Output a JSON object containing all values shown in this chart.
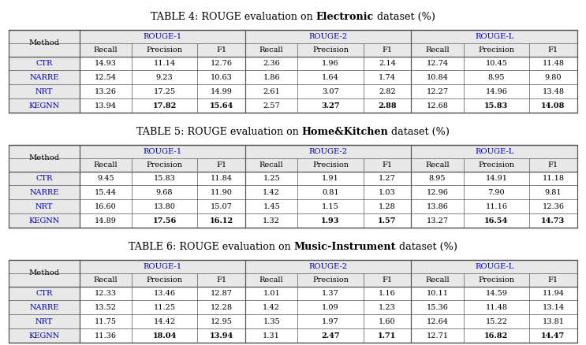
{
  "tables": [
    {
      "title_prefix": "TABLE 4: ROUGE evaluation on ",
      "title_bold": "Electronic",
      "title_suffix": " dataset (%)",
      "rows": [
        [
          "CTR",
          "14.93",
          "11.14",
          "12.76",
          "2.36",
          "1.96",
          "2.14",
          "12.74",
          "10.45",
          "11.48"
        ],
        [
          "NARRE",
          "12.54",
          "9.23",
          "10.63",
          "1.86",
          "1.64",
          "1.74",
          "10.84",
          "8.95",
          "9.80"
        ],
        [
          "NRT",
          "13.26",
          "17.25",
          "14.99",
          "2.61",
          "3.07",
          "2.82",
          "12.27",
          "14.96",
          "13.48"
        ],
        [
          "KEGNN",
          "13.94",
          "17.82",
          "15.64",
          "2.57",
          "3.27",
          "2.88",
          "12.68",
          "15.83",
          "14.08"
        ]
      ],
      "bold_row": 3,
      "bold_cols": [
        2,
        3,
        5,
        6,
        8,
        9
      ]
    },
    {
      "title_prefix": "TABLE 5: ROUGE evaluation on ",
      "title_bold": "Home&Kitchen",
      "title_suffix": " dataset (%)",
      "rows": [
        [
          "CTR",
          "9.45",
          "15.83",
          "11.84",
          "1.25",
          "1.91",
          "1.27",
          "8.95",
          "14.91",
          "11.18"
        ],
        [
          "NARRE",
          "15.44",
          "9.68",
          "11.90",
          "1.42",
          "0.81",
          "1.03",
          "12.96",
          "7.90",
          "9.81"
        ],
        [
          "NRT",
          "16.60",
          "13.80",
          "15.07",
          "1.45",
          "1.15",
          "1.28",
          "13.86",
          "11.16",
          "12.36"
        ],
        [
          "KEGNN",
          "14.89",
          "17.56",
          "16.12",
          "1.32",
          "1.93",
          "1.57",
          "13.27",
          "16.54",
          "14.73"
        ]
      ],
      "bold_row": 3,
      "bold_cols": [
        2,
        3,
        5,
        6,
        8,
        9
      ]
    },
    {
      "title_prefix": "TABLE 6: ROUGE evaluation on ",
      "title_bold": "Music-Instrument",
      "title_suffix": " dataset (%)",
      "rows": [
        [
          "CTR",
          "12.33",
          "13.46",
          "12.87",
          "1.01",
          "1.37",
          "1.16",
          "10.11",
          "14.59",
          "11.94"
        ],
        [
          "NARRE",
          "13.52",
          "11.25",
          "12.28",
          "1.42",
          "1.09",
          "1.23",
          "15.36",
          "11.48",
          "13.14"
        ],
        [
          "NRT",
          "11.75",
          "14.42",
          "12.95",
          "1.35",
          "1.97",
          "1.60",
          "12.64",
          "15.22",
          "13.81"
        ],
        [
          "KEGNN",
          "11.36",
          "18.04",
          "13.94",
          "1.31",
          "2.47",
          "1.71",
          "12.71",
          "16.82",
          "14.47"
        ]
      ],
      "bold_row": 3,
      "bold_cols": [
        2,
        3,
        5,
        6,
        8,
        9
      ]
    }
  ],
  "bg_color": "#ffffff",
  "header_bg": "#e8e8e8",
  "border_color": "#555555",
  "text_color": "#000000",
  "blue_color": "#0000bb",
  "data_fontsize": 7.0,
  "header_fontsize": 7.2,
  "title_fontsize": 9.2
}
